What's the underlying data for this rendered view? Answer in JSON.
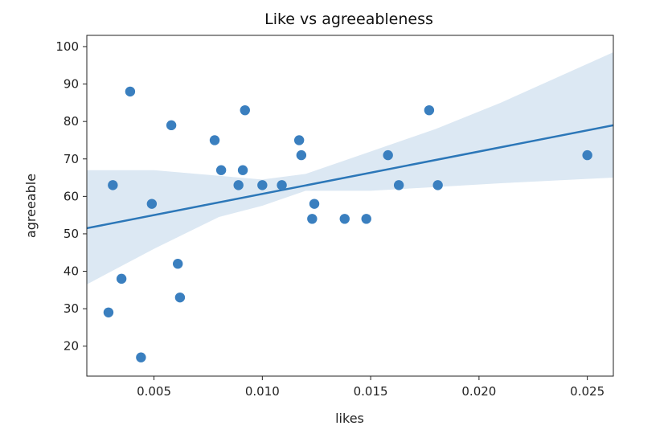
{
  "chart_data": {
    "type": "scatter",
    "title": "Like vs agreeableness",
    "xlabel": "likes",
    "ylabel": "agreeable",
    "xlim": [
      0.0019,
      0.0262
    ],
    "ylim": [
      12,
      103
    ],
    "x_ticks": [
      0.005,
      0.01,
      0.015,
      0.02,
      0.025
    ],
    "x_tick_labels": [
      "0.005",
      "0.010",
      "0.015",
      "0.020",
      "0.025"
    ],
    "y_ticks": [
      20,
      30,
      40,
      50,
      60,
      70,
      80,
      90,
      100
    ],
    "y_tick_labels": [
      "20",
      "30",
      "40",
      "50",
      "60",
      "70",
      "80",
      "90",
      "100"
    ],
    "grid": false,
    "legend": "none",
    "point_color": "#3a7fbf",
    "line_color": "#2c77b8",
    "band_color": "#dce8f3",
    "points": [
      {
        "x": 0.0029,
        "y": 29
      },
      {
        "x": 0.0031,
        "y": 63
      },
      {
        "x": 0.0035,
        "y": 38
      },
      {
        "x": 0.0039,
        "y": 88
      },
      {
        "x": 0.0044,
        "y": 17
      },
      {
        "x": 0.0049,
        "y": 58
      },
      {
        "x": 0.0058,
        "y": 79
      },
      {
        "x": 0.0061,
        "y": 42
      },
      {
        "x": 0.0062,
        "y": 33
      },
      {
        "x": 0.0078,
        "y": 75
      },
      {
        "x": 0.0081,
        "y": 67
      },
      {
        "x": 0.0089,
        "y": 63
      },
      {
        "x": 0.0091,
        "y": 67
      },
      {
        "x": 0.0092,
        "y": 83
      },
      {
        "x": 0.01,
        "y": 63
      },
      {
        "x": 0.0109,
        "y": 63
      },
      {
        "x": 0.0117,
        "y": 75
      },
      {
        "x": 0.0118,
        "y": 71
      },
      {
        "x": 0.0123,
        "y": 54
      },
      {
        "x": 0.0124,
        "y": 58
      },
      {
        "x": 0.0138,
        "y": 54
      },
      {
        "x": 0.0148,
        "y": 54
      },
      {
        "x": 0.0158,
        "y": 71
      },
      {
        "x": 0.0163,
        "y": 63
      },
      {
        "x": 0.0177,
        "y": 83
      },
      {
        "x": 0.0181,
        "y": 63
      },
      {
        "x": 0.025,
        "y": 71
      }
    ],
    "regression": {
      "x": [
        0.0019,
        0.0262
      ],
      "y": [
        51.5,
        79
      ]
    },
    "confidence_band": {
      "x": [
        0.0019,
        0.005,
        0.008,
        0.01,
        0.012,
        0.015,
        0.018,
        0.021,
        0.0262
      ],
      "upper": [
        67,
        67,
        65.5,
        64.5,
        66,
        72,
        78,
        85,
        98.5
      ],
      "lower": [
        36.5,
        46,
        54.5,
        57.5,
        61.5,
        61.5,
        62.5,
        63.5,
        65
      ]
    }
  }
}
